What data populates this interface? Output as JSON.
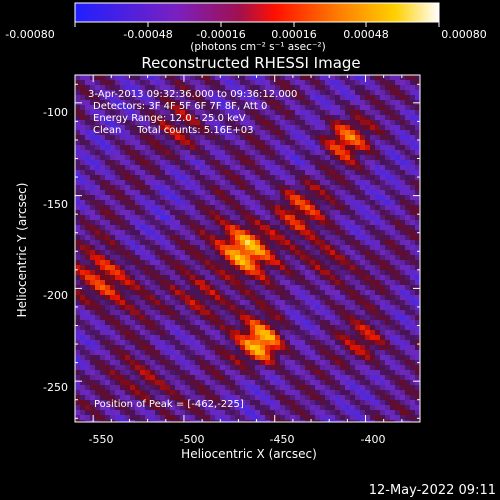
{
  "colorbar": {
    "tick_labels": [
      "-0.00080",
      "-0.00048",
      "-0.00016",
      "0.00016",
      "0.00048",
      "0.00080"
    ],
    "unit_label": "(photons cm⁻² s⁻¹ asec⁻²)",
    "colors": [
      "#2020ff",
      "#8a1fb0",
      "#ff0000",
      "#ff8c00",
      "#ffd000",
      "#ffffff"
    ]
  },
  "image": {
    "title": "Reconstructed RHESSI Image",
    "annotations": [
      "3-Apr-2013 09:32:36.000 to 09:36:12.000",
      "Detectors: 3F 4F 5F 6F 7F 8F, Att 0",
      "Energy Range: 12.0 - 25.0 keV",
      "Clean     Total counts: 5.16E+03"
    ],
    "peak_label": "Position of Peak = [-462,-225]",
    "x_axis": {
      "label": "Heliocentric X (arcsec)",
      "ticks": [
        "-550",
        "-500",
        "-450",
        "-400"
      ],
      "range": [
        -560,
        -370
      ]
    },
    "y_axis": {
      "label": "Heliocentric Y (arcsec)",
      "ticks": [
        "-100",
        "-150",
        "-200",
        "-250"
      ],
      "range": [
        -272,
        -85
      ]
    },
    "peak": [
      -462,
      -225
    ]
  },
  "footer": {
    "date": "12-May-2022 09:11"
  }
}
